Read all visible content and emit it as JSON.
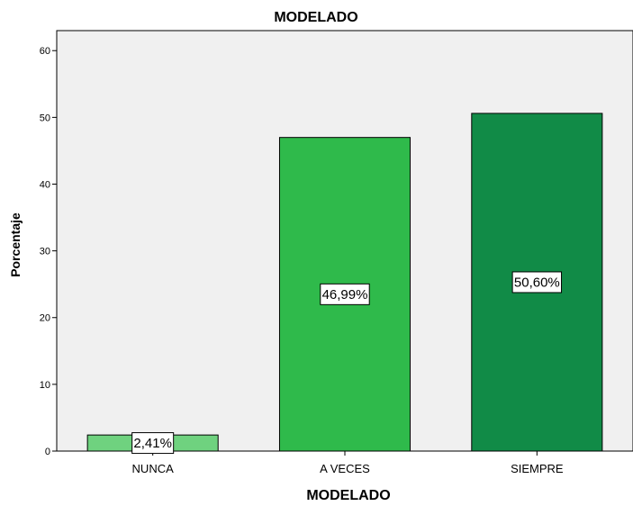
{
  "chart_data": {
    "type": "bar",
    "title": "MODELADO",
    "xlabel": "MODELADO",
    "ylabel": "Porcentaje",
    "categories": [
      "NUNCA",
      "A VECES",
      "SIEMPRE"
    ],
    "values": [
      2.41,
      46.99,
      50.6
    ],
    "value_labels": [
      "2,41%",
      "46,99%",
      "50,60%"
    ],
    "ylim": [
      0,
      63
    ],
    "yticks": [
      0,
      10,
      20,
      30,
      40,
      50,
      60
    ],
    "ytick_labels": [
      "0",
      "10",
      "20",
      "30",
      "40",
      "50",
      "60"
    ],
    "grid": false,
    "legend": "none",
    "colors": {
      "plot_background": "#f0f0f0",
      "bars": [
        "#6fd27f",
        "#2fba4b",
        "#118b47"
      ],
      "bar_edge": "#000000",
      "label_box": "#ffffff"
    }
  }
}
